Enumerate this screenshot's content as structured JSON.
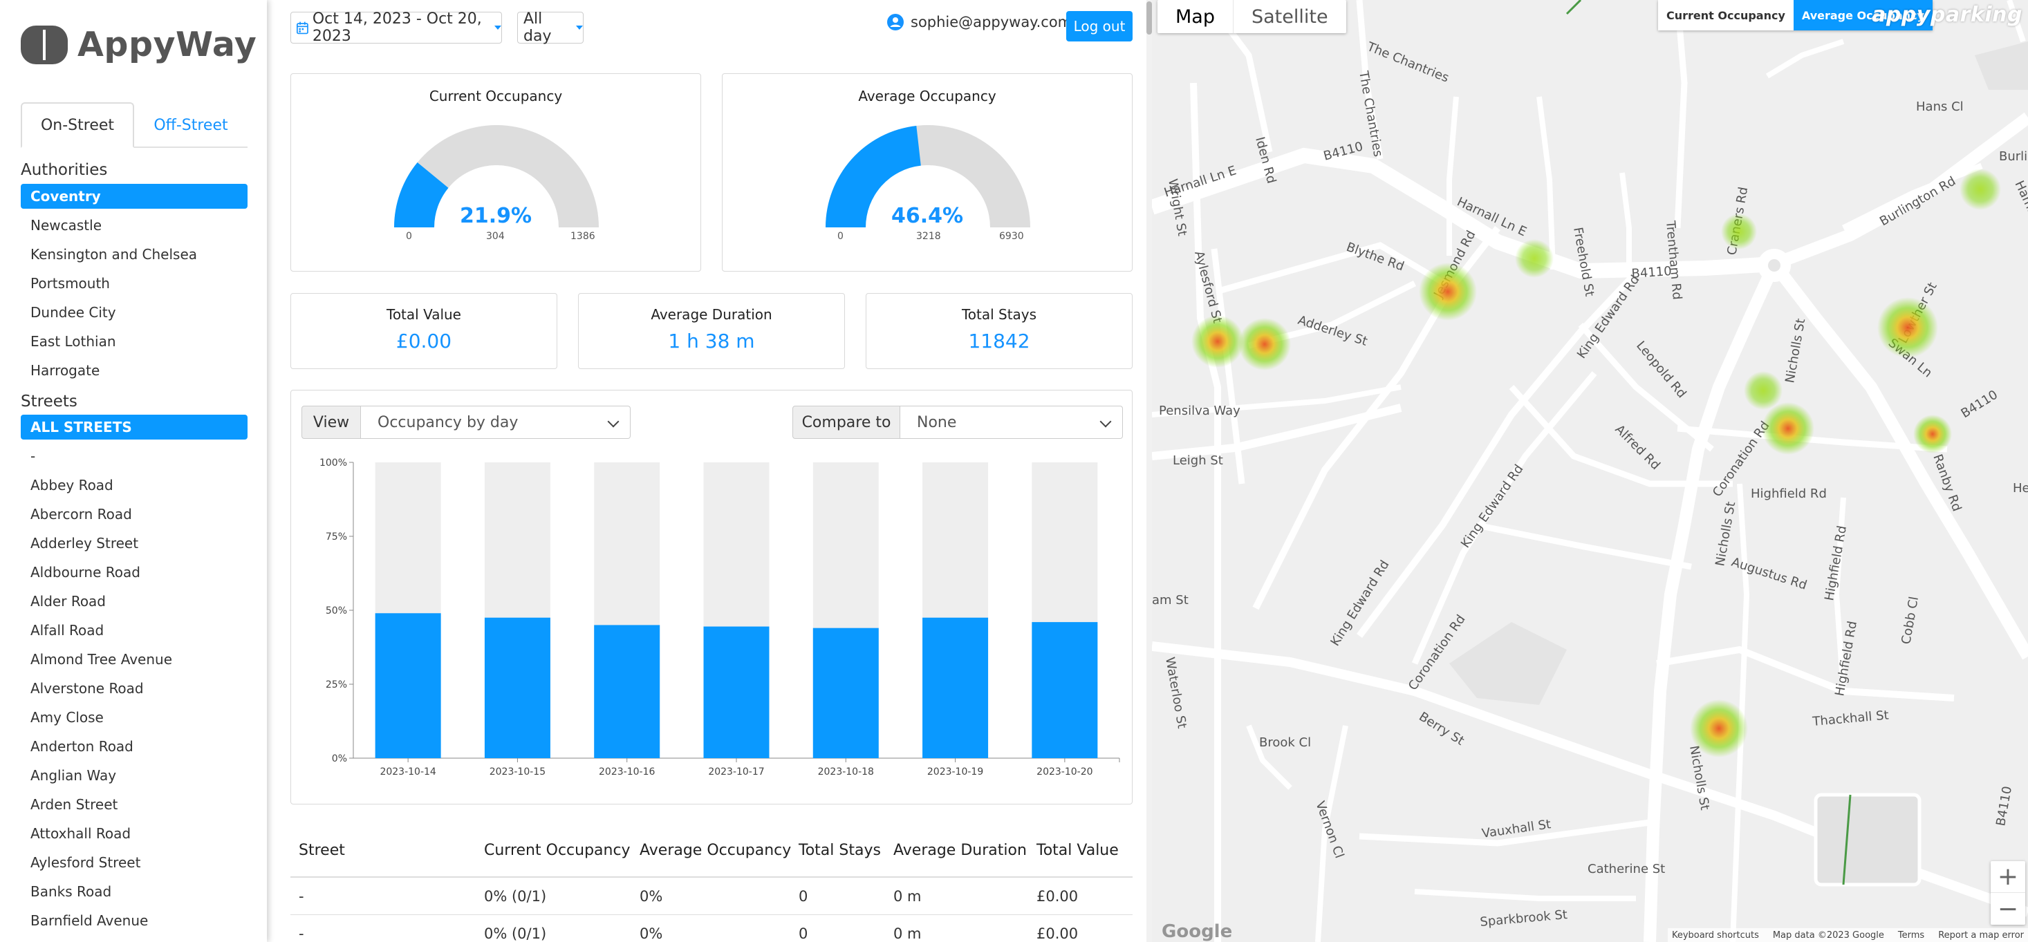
{
  "app": {
    "name": "AppyWay"
  },
  "sidebar": {
    "tabs": [
      "On-Street",
      "Off-Street"
    ],
    "authorities_title": "Authorities",
    "authorities": [
      "Coventry",
      "Newcastle",
      "Kensington and Chelsea",
      "Portsmouth",
      "Dundee City",
      "East Lothian",
      "Harrogate"
    ],
    "selected_authority": "Coventry",
    "streets_title": "Streets",
    "streets": [
      "ALL STREETS",
      "-",
      "Abbey Road",
      "Abercorn Road",
      "Adderley Street",
      "Aldbourne Road",
      "Alder Road",
      "Alfall Road",
      "Almond Tree Avenue",
      "Alverstone Road",
      "Amy Close",
      "Anderton Road",
      "Anglian Way",
      "Arden Street",
      "Attoxhall Road",
      "Aylesford Street",
      "Banks Road",
      "Barnfield Avenue"
    ],
    "selected_street": "ALL STREETS"
  },
  "header": {
    "date_range": "Oct 14, 2023 - Oct 20, 2023",
    "time_range": "All day",
    "user_email": "sophie@appyway.com",
    "logout_label": "Log out"
  },
  "icons": {
    "calendar": "calendar-icon",
    "user": "user-icon",
    "caret": "caret-down-icon",
    "chevron": "chevron-down-icon"
  },
  "colors": {
    "accent": "#0a99ff",
    "gauge_track": "#dddddd",
    "bar_empty": "#eeeeee",
    "heat_low": "#7fd700",
    "heat_high": "#e8551f"
  },
  "gauges": {
    "current": {
      "title": "Current Occupancy",
      "value": "21.9%",
      "fraction": 0.219,
      "min": "0",
      "mid": "304",
      "max": "1386"
    },
    "average": {
      "title": "Average Occupancy",
      "value": "46.4%",
      "fraction": 0.464,
      "min": "0",
      "mid": "3218",
      "max": "6930"
    }
  },
  "stats": [
    {
      "title": "Total Value",
      "value": "£0.00"
    },
    {
      "title": "Average Duration",
      "value": "1 h 38 m"
    },
    {
      "title": "Total Stays",
      "value": "11842"
    }
  ],
  "chart_controls": {
    "view_label": "View",
    "view_value": "Occupancy by day",
    "compare_label": "Compare to",
    "compare_value": "None"
  },
  "chart_data": {
    "type": "bar",
    "stacked_to": 100,
    "categories": [
      "2023-10-14",
      "2023-10-15",
      "2023-10-16",
      "2023-10-17",
      "2023-10-18",
      "2023-10-19",
      "2023-10-20"
    ],
    "values": [
      49,
      47.5,
      45,
      44.5,
      44,
      47.5,
      46
    ],
    "ylim": [
      0,
      100
    ],
    "yticks": [
      "0%",
      "25%",
      "50%",
      "75%",
      "100%"
    ],
    "title": "",
    "xlabel": "",
    "ylabel": ""
  },
  "table": {
    "headers": [
      "Street",
      "Current Occupancy",
      "Average Occupancy",
      "Total Stays",
      "Average Duration",
      "Total Value"
    ],
    "rows": [
      [
        "-",
        "0% (0/1)",
        "0%",
        "0",
        "0 m",
        "£0.00"
      ],
      [
        "-",
        "0% (0/1)",
        "0%",
        "0",
        "0 m",
        "£0.00"
      ]
    ]
  },
  "map": {
    "type_options": [
      "Map",
      "Satellite"
    ],
    "selected_type": "Map",
    "layers": [
      "Current Occupancy",
      "Average Occupancy"
    ],
    "selected_layer": "Average Occupancy",
    "brand": "appyparking",
    "street_labels": [
      "The Chantries",
      "Iden Rd",
      "B4110",
      "Harnall Ln E",
      "Aylesford St",
      "Blythe Rd",
      "Adderley St",
      "Harnall Ln E",
      "Jesmond Rd",
      "Freehold St",
      "Trentham Rd",
      "Craners Rd",
      "B4110",
      "Hans Cl",
      "Burlington Rd",
      "Hammond Rd",
      "Swan Ln",
      "Lowther St",
      "B4110",
      "Ranby Rd",
      "Nicholls St",
      "Leopold Rd",
      "King Edward Rd",
      "Alfred Rd",
      "Coronation Rd",
      "Highfield Rd",
      "Augustus Rd",
      "Highfield Rd",
      "Nicholls St",
      "King Edward Rd",
      "King Edward Rd",
      "Coronation Rd",
      "Pensilva Way",
      "Leigh St",
      "Wright St",
      "The Chantries",
      "Waterloo St",
      "Berry St",
      "Brook Cl",
      "Vernon Cl",
      "Vauxhall St",
      "Thackhall St",
      "Nicholls St",
      "Catherine St",
      "Sparkbrook St",
      "Cobb Cl",
      "B4110",
      "Highfield Rd",
      "Heath",
      "Burlingt",
      "am St"
    ],
    "zoom_in": "+",
    "zoom_out": "−",
    "attribution": [
      "Keyboard shortcuts",
      "Map data ©2023 Google",
      "Terms",
      "Report a map error"
    ],
    "google": "Google"
  }
}
